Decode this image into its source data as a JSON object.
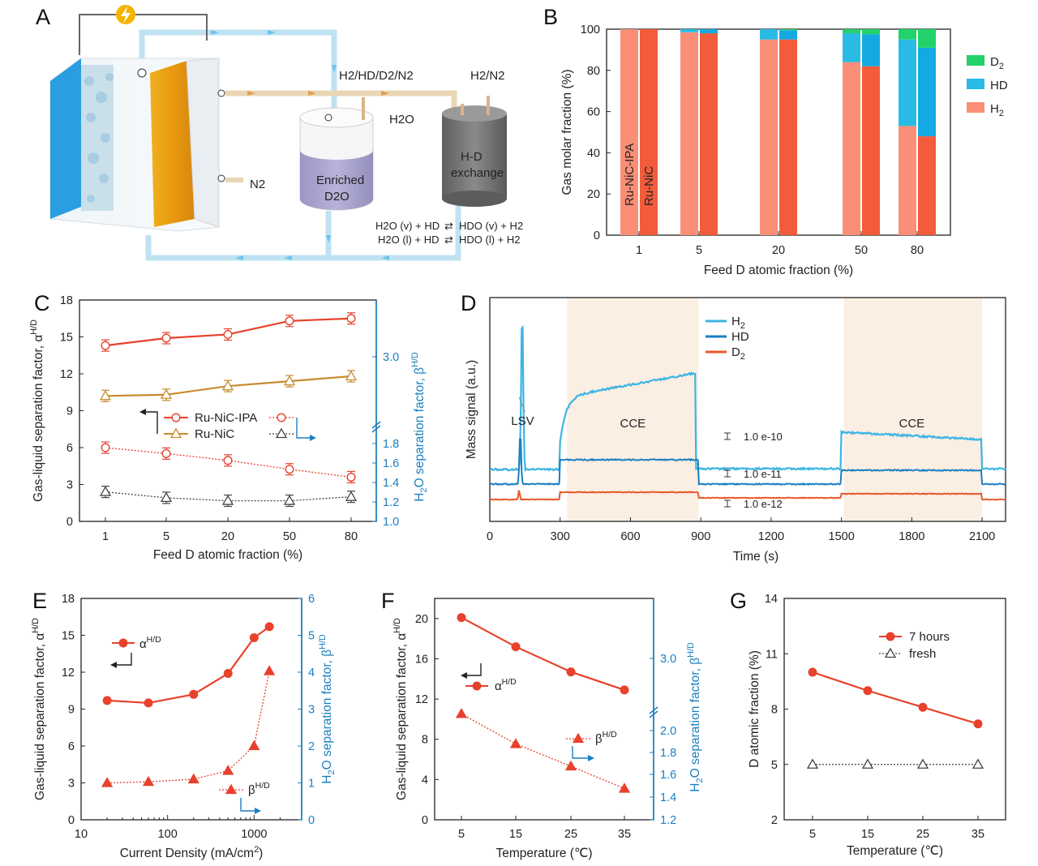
{
  "panel_labels": {
    "A": "A",
    "B": "B",
    "C": "C",
    "D": "D",
    "E": "E",
    "F": "F",
    "G": "G"
  },
  "colors": {
    "red": "#e8412c",
    "orange": "#e8582a",
    "salmon": "#fa8e76",
    "cyan": "#29bbe6",
    "green": "#23d26b",
    "tan": "#c88a2e",
    "gray": "#444444",
    "blue": "#1a7fc1",
    "lightblue": "#3cb5e3",
    "band": "#fbeee3"
  },
  "diagram": {
    "label_gas_top": "H2/HD/D2/N2",
    "label_h2n2": "H2/N2",
    "label_h2o": "H2O",
    "label_n2": "N2",
    "label_enriched_1": "Enriched",
    "label_enriched_2": "D2O",
    "label_exchange_1": "H-D",
    "label_exchange_2": "exchange",
    "eq1_left": "H2O (v) + HD",
    "eq1_right": "HDO (v) + H2",
    "eq2_left": "H2O (l) + HD",
    "eq2_right": "HDO (l) + H2",
    "power_icon": "lightning-bolt-icon"
  },
  "chart_data": [
    {
      "id": "B",
      "type": "bar",
      "stacked": true,
      "categories": [
        "1",
        "5",
        "20",
        "50",
        "80"
      ],
      "bar_labels": [
        "Ru-NiC-IPA",
        "Ru-NiC"
      ],
      "series": [
        {
          "name": "H2",
          "color": "#fa8e76",
          "values_ipa": [
            100,
            98.5,
            95,
            84,
            53
          ],
          "values_nic": [
            100,
            98,
            95,
            82,
            48
          ]
        },
        {
          "name": "HD",
          "color": "#29bbe6",
          "values_ipa": [
            0,
            1.5,
            5,
            14,
            42
          ],
          "values_nic": [
            0,
            2,
            4.5,
            15.5,
            43
          ]
        },
        {
          "name": "D2",
          "color": "#23d26b",
          "values_ipa": [
            0,
            0,
            0,
            2,
            5
          ],
          "values_nic": [
            0,
            0,
            0.5,
            2.5,
            9
          ]
        }
      ],
      "legend": [
        "D2",
        "HD",
        "H2"
      ],
      "xlabel": "Feed D atomic fraction (%)",
      "ylabel": "Gas molar fraction (%)",
      "ylim": [
        0,
        100
      ],
      "yticks": [
        "0",
        "20",
        "40",
        "60",
        "80",
        "100"
      ]
    },
    {
      "id": "C",
      "type": "line",
      "categories": [
        "1",
        "5",
        "20",
        "50",
        "80"
      ],
      "series": [
        {
          "name": "Ru-NiC-IPA",
          "axis": "left",
          "style": "solid",
          "color": "#e8412c",
          "marker": "circle",
          "values": [
            14.3,
            14.9,
            15.2,
            16.3,
            16.5
          ]
        },
        {
          "name": "Ru-NiC",
          "axis": "left",
          "style": "solid",
          "color": "#c88a2e",
          "marker": "triangle",
          "values": [
            10.2,
            10.3,
            11.0,
            11.4,
            11.8
          ]
        },
        {
          "name": "Ru-NiC-IPA",
          "axis": "right",
          "style": "dotted",
          "color": "#e8412c",
          "marker": "circle",
          "values": [
            1.75,
            1.69,
            1.62,
            1.53,
            1.45
          ]
        },
        {
          "name": "Ru-NiC",
          "axis": "right",
          "style": "dotted",
          "color": "#444444",
          "marker": "triangle",
          "values": [
            1.3,
            1.24,
            1.21,
            1.21,
            1.25
          ]
        }
      ],
      "xlabel": "Feed D atomic fraction (%)",
      "ylabel": "Gas-liquid separation factor, α",
      "ylabel_sup": "H/D",
      "y2label": "H2O separation factor, β",
      "y2label_sup": "H/D",
      "ylim": [
        0,
        18
      ],
      "yticks": [
        "0",
        "3",
        "6",
        "9",
        "12",
        "15",
        "18"
      ],
      "y2ticks": [
        "1.0",
        "1.2",
        "1.4",
        "1.6",
        "1.8",
        "3.0"
      ]
    },
    {
      "id": "D",
      "type": "line",
      "series": [
        {
          "name": "H2",
          "color": "#3cb5e3"
        },
        {
          "name": "HD",
          "color": "#1a7fc1"
        },
        {
          "name": "D2",
          "color": "#e8582a"
        }
      ],
      "annotations": [
        "LSV",
        "CCE",
        "CCE",
        "1.0 e-10",
        "1.0 e-11",
        "1.0 e-12"
      ],
      "xlabel": "Time (s)",
      "ylabel": "Mass signal (a.u.)",
      "xlim": [
        0,
        2200
      ],
      "xticks": [
        "0",
        "300",
        "600",
        "900",
        "1200",
        "1500",
        "1800",
        "2100"
      ],
      "cce_windows": [
        [
          330,
          890
        ],
        [
          1510,
          2100
        ]
      ]
    },
    {
      "id": "E",
      "type": "line",
      "xscale": "log",
      "series": [
        {
          "name": "α H/D",
          "axis": "left",
          "style": "solid",
          "color": "#e8412c",
          "marker": "circle",
          "x": [
            20,
            60,
            200,
            500,
            1000,
            1500
          ],
          "values": [
            9.7,
            9.5,
            10.2,
            11.9,
            14.8,
            15.7
          ]
        },
        {
          "name": "β H/D",
          "axis": "right",
          "style": "dotted",
          "color": "#e8412c",
          "marker": "triangle",
          "x": [
            20,
            60,
            200,
            500,
            1000,
            1500
          ],
          "values": [
            1.0,
            1.03,
            1.1,
            1.33,
            2.0,
            4.03
          ]
        }
      ],
      "xlabel": "Current Density (mA/cm2)",
      "ylabel": "Gas-liquid separation factor, α",
      "ylabel_sup": "H/D",
      "y2label": "H2O separation factor, β",
      "y2label_sup": "H/D",
      "xticks": [
        "10",
        "100",
        "1000"
      ],
      "ylim": [
        0,
        18
      ],
      "yticks": [
        "0",
        "3",
        "6",
        "9",
        "12",
        "15",
        "18"
      ],
      "y2lim": [
        0,
        6
      ],
      "y2ticks": [
        "0",
        "1",
        "2",
        "3",
        "4",
        "5",
        "6"
      ],
      "legend_alpha": "α",
      "legend_beta": "β",
      "legend_sup": "H/D"
    },
    {
      "id": "F",
      "type": "line",
      "categories": [
        "5",
        "15",
        "25",
        "35"
      ],
      "series": [
        {
          "name": "α H/D",
          "axis": "left",
          "style": "solid",
          "color": "#e8412c",
          "marker": "circle",
          "values": [
            20.1,
            17.2,
            14.7,
            12.9
          ]
        },
        {
          "name": "β H/D",
          "axis": "right",
          "style": "dotted",
          "color": "#e8412c",
          "marker": "triangle",
          "values": [
            2.15,
            1.88,
            1.68,
            1.48
          ]
        }
      ],
      "xlabel": "Temperature (℃)",
      "ylabel": "Gas-liquid separation factor, α",
      "ylabel_sup": "H/D",
      "y2label": "H2O separation factor, β",
      "y2label_sup": "H/D",
      "yticks": [
        "0",
        "4",
        "8",
        "12",
        "16",
        "20"
      ],
      "y2ticks": [
        "1.2",
        "1.4",
        "1.6",
        "1.8",
        "2.0",
        "3.0"
      ],
      "legend_alpha": "α",
      "legend_beta": "β",
      "legend_sup": "H/D"
    },
    {
      "id": "G",
      "type": "line",
      "categories": [
        "5",
        "15",
        "25",
        "35"
      ],
      "series": [
        {
          "name": "7 hours",
          "style": "solid",
          "color": "#e8412c",
          "marker": "circle",
          "values": [
            10.0,
            9.0,
            8.1,
            7.2
          ]
        },
        {
          "name": "fresh",
          "style": "dotted",
          "color": "#444444",
          "marker": "triangle-open",
          "values": [
            5.0,
            5.0,
            5.0,
            5.0
          ]
        }
      ],
      "xlabel": "Temperature (℃)",
      "ylabel": "D atomic fraction (%)",
      "ylim": [
        2,
        14
      ],
      "yticks": [
        "2",
        "5",
        "8",
        "11",
        "14"
      ]
    }
  ]
}
